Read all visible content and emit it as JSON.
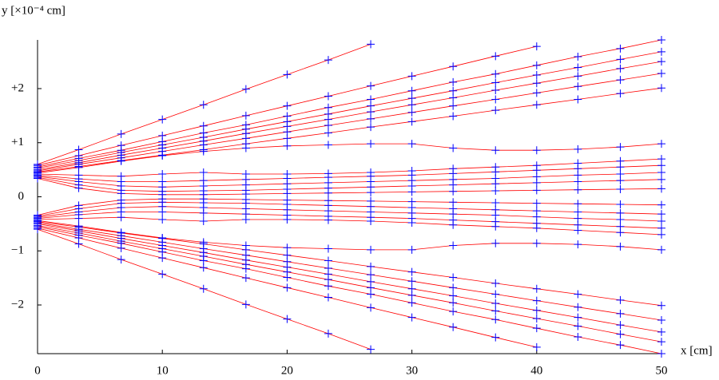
{
  "chart_data": {
    "type": "line",
    "y_label": "y [×10⁻⁴ cm]",
    "x_label": "x [cm]",
    "x": [
      0,
      3.3,
      6.7,
      10,
      13.3,
      16.7,
      20,
      23.3,
      26.7,
      30,
      33.3,
      36.7,
      40,
      43.3,
      46.7,
      50
    ],
    "xlim": [
      0,
      50
    ],
    "xticks": [
      0,
      10,
      20,
      30,
      40,
      50
    ],
    "ylim": [
      -2.9,
      2.9
    ],
    "yticks": [
      {
        "value": -2,
        "label": "−2"
      },
      {
        "value": -1,
        "label": "−1"
      },
      0,
      {
        "value": 1,
        "label": "+1"
      },
      {
        "value": 2,
        "label": "+2"
      }
    ],
    "line_color": "#ff0000",
    "marker_color": "#0000ff",
    "series": [
      {
        "values": [
          0.6,
          0.87,
          1.16,
          1.43,
          1.7,
          1.99,
          2.26,
          2.53,
          2.82,
          null,
          null,
          null,
          null,
          null,
          null,
          null
        ]
      },
      {
        "values": [
          0.58,
          0.76,
          0.95,
          1.13,
          1.31,
          1.5,
          1.68,
          1.86,
          2.05,
          2.23,
          2.41,
          2.6,
          2.78,
          null,
          null,
          null
        ]
      },
      {
        "values": [
          0.55,
          0.71,
          0.86,
          1.02,
          1.18,
          1.33,
          1.49,
          1.65,
          1.8,
          1.96,
          2.12,
          2.27,
          2.43,
          2.59,
          2.74,
          2.9
        ]
      },
      {
        "values": [
          0.53,
          0.67,
          0.82,
          0.96,
          1.1,
          1.25,
          1.39,
          1.53,
          1.68,
          1.82,
          1.96,
          2.11,
          2.25,
          2.39,
          2.54,
          2.68
        ]
      },
      {
        "values": [
          0.5,
          0.63,
          0.77,
          0.9,
          1.03,
          1.17,
          1.3,
          1.43,
          1.57,
          1.7,
          1.83,
          1.97,
          2.1,
          2.23,
          2.37,
          2.5
        ]
      },
      {
        "values": [
          0.48,
          0.6,
          0.72,
          0.84,
          0.96,
          1.08,
          1.2,
          1.32,
          1.44,
          1.56,
          1.68,
          1.8,
          1.92,
          2.04,
          2.16,
          2.28
        ]
      },
      {
        "values": [
          0.46,
          0.56,
          0.67,
          0.77,
          0.87,
          0.98,
          1.08,
          1.18,
          1.29,
          1.39,
          1.49,
          1.6,
          1.7,
          1.8,
          1.91,
          2.01
        ]
      },
      {
        "values": [
          0.44,
          0.54,
          0.66,
          0.76,
          0.84,
          0.9,
          0.94,
          0.96,
          0.98,
          0.98,
          0.9,
          0.86,
          0.86,
          0.88,
          0.92,
          0.98
        ]
      },
      {
        "values": [
          0.42,
          0.4,
          0.38,
          0.42,
          0.45,
          0.42,
          0.42,
          0.43,
          0.45,
          0.48,
          0.52,
          0.55,
          0.58,
          0.62,
          0.66,
          0.7
        ]
      },
      {
        "values": [
          0.4,
          0.33,
          0.28,
          0.28,
          0.3,
          0.32,
          0.34,
          0.36,
          0.38,
          0.4,
          0.43,
          0.46,
          0.49,
          0.52,
          0.55,
          0.58
        ]
      },
      {
        "values": [
          0.38,
          0.28,
          0.2,
          0.18,
          0.2,
          0.22,
          0.24,
          0.26,
          0.28,
          0.3,
          0.32,
          0.34,
          0.37,
          0.4,
          0.42,
          0.45
        ]
      },
      {
        "values": [
          0.36,
          0.22,
          0.12,
          0.1,
          0.11,
          0.12,
          0.14,
          0.16,
          0.18,
          0.2,
          0.22,
          0.24,
          0.26,
          0.28,
          0.3,
          0.32
        ]
      },
      {
        "values": [
          0.34,
          0.16,
          0.06,
          0.04,
          0.04,
          0.05,
          0.06,
          0.07,
          0.08,
          0.09,
          0.1,
          0.11,
          0.12,
          0.13,
          0.14,
          0.15
        ]
      },
      {
        "values": [
          -0.34,
          -0.16,
          -0.06,
          -0.04,
          -0.04,
          -0.05,
          -0.06,
          -0.07,
          -0.08,
          -0.09,
          -0.1,
          -0.11,
          -0.12,
          -0.13,
          -0.14,
          -0.15
        ]
      },
      {
        "values": [
          -0.36,
          -0.22,
          -0.12,
          -0.1,
          -0.11,
          -0.12,
          -0.14,
          -0.16,
          -0.18,
          -0.2,
          -0.22,
          -0.24,
          -0.26,
          -0.28,
          -0.3,
          -0.32
        ]
      },
      {
        "values": [
          -0.38,
          -0.28,
          -0.2,
          -0.18,
          -0.2,
          -0.22,
          -0.24,
          -0.26,
          -0.28,
          -0.3,
          -0.32,
          -0.34,
          -0.37,
          -0.4,
          -0.42,
          -0.45
        ]
      },
      {
        "values": [
          -0.4,
          -0.33,
          -0.28,
          -0.28,
          -0.3,
          -0.32,
          -0.34,
          -0.36,
          -0.38,
          -0.4,
          -0.43,
          -0.46,
          -0.49,
          -0.52,
          -0.55,
          -0.58
        ]
      },
      {
        "values": [
          -0.42,
          -0.4,
          -0.38,
          -0.42,
          -0.45,
          -0.42,
          -0.42,
          -0.43,
          -0.45,
          -0.48,
          -0.52,
          -0.55,
          -0.58,
          -0.62,
          -0.66,
          -0.7
        ]
      },
      {
        "values": [
          -0.44,
          -0.54,
          -0.66,
          -0.76,
          -0.84,
          -0.9,
          -0.94,
          -0.96,
          -0.98,
          -0.98,
          -0.9,
          -0.86,
          -0.86,
          -0.88,
          -0.92,
          -0.98
        ]
      },
      {
        "values": [
          -0.46,
          -0.56,
          -0.67,
          -0.77,
          -0.87,
          -0.98,
          -1.08,
          -1.18,
          -1.29,
          -1.39,
          -1.49,
          -1.6,
          -1.7,
          -1.8,
          -1.91,
          -2.01
        ]
      },
      {
        "values": [
          -0.48,
          -0.6,
          -0.72,
          -0.84,
          -0.96,
          -1.08,
          -1.2,
          -1.32,
          -1.44,
          -1.56,
          -1.68,
          -1.8,
          -1.92,
          -2.04,
          -2.16,
          -2.28
        ]
      },
      {
        "values": [
          -0.5,
          -0.63,
          -0.77,
          -0.9,
          -1.03,
          -1.17,
          -1.3,
          -1.43,
          -1.57,
          -1.7,
          -1.83,
          -1.97,
          -2.1,
          -2.23,
          -2.37,
          -2.5
        ]
      },
      {
        "values": [
          -0.53,
          -0.67,
          -0.82,
          -0.96,
          -1.1,
          -1.25,
          -1.39,
          -1.53,
          -1.68,
          -1.82,
          -1.96,
          -2.11,
          -2.25,
          -2.39,
          -2.54,
          -2.68
        ]
      },
      {
        "values": [
          -0.55,
          -0.71,
          -0.86,
          -1.02,
          -1.18,
          -1.33,
          -1.49,
          -1.65,
          -1.8,
          -1.96,
          -2.12,
          -2.27,
          -2.43,
          -2.59,
          -2.74,
          -2.9
        ]
      },
      {
        "values": [
          -0.58,
          -0.76,
          -0.95,
          -1.13,
          -1.31,
          -1.5,
          -1.68,
          -1.86,
          -2.05,
          -2.23,
          -2.41,
          -2.6,
          -2.78,
          null,
          null,
          null
        ]
      },
      {
        "values": [
          -0.6,
          -0.87,
          -1.16,
          -1.43,
          -1.7,
          -1.99,
          -2.26,
          -2.53,
          -2.82,
          null,
          null,
          null,
          null,
          null,
          null,
          null
        ]
      }
    ]
  }
}
